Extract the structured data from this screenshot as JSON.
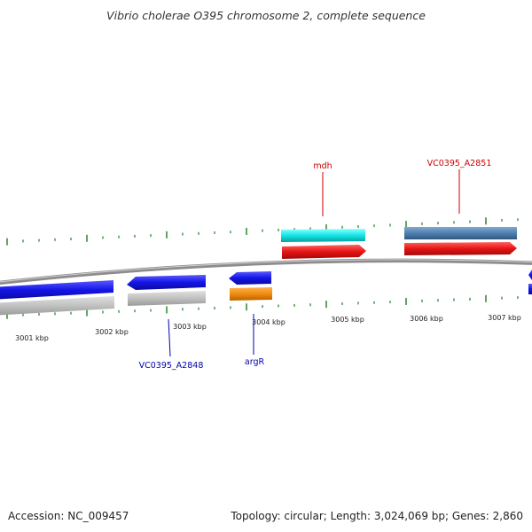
{
  "title": "Vibrio cholerae O395 chromosome 2, complete sequence",
  "accession": "Accession: NC_009457",
  "stats": "Topology: circular; Length: 3,024,069 bp; Genes: 2,860",
  "kbp_labels": [
    "3001 kbp",
    "3002 kbp",
    "3003 kbp",
    "3004 kbp",
    "3005 kbp",
    "3006 kbp",
    "3007 kbp"
  ],
  "gene_labels": {
    "mdh": "mdh",
    "vc2851": "VC0395_A2851",
    "vc2848": "VC0395_A2848",
    "argR": "argR"
  },
  "colors": {
    "blue_cds": "#1515e6",
    "gray_gene": "#c0c0c0",
    "orange_gene": "#f08c10",
    "cyan_gene": "#14e6e6",
    "steel_gene": "#5080b0",
    "red_cds": "#e61414",
    "tick_green": "#1a801a",
    "label_red": "#cc0000",
    "label_blue": "#0000aa"
  }
}
